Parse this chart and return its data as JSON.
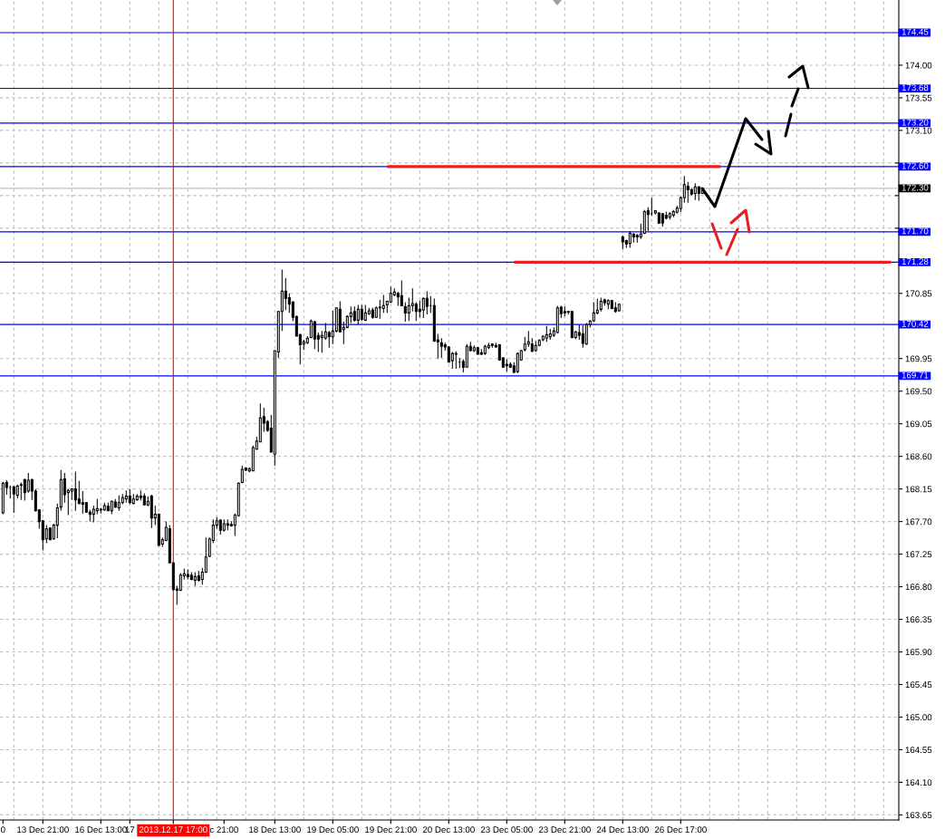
{
  "chart_data": {
    "type": "candlestick",
    "color": "#000000",
    "categories": [
      "0",
      null,
      null,
      null,
      null,
      null,
      null,
      null,
      null,
      null,
      null,
      "13 Dec 21:00",
      null,
      null,
      null,
      null,
      null,
      null,
      null,
      null,
      null,
      null,
      null,
      null,
      null,
      null,
      null,
      "16 Dec 13:00",
      null,
      null,
      null,
      null,
      null,
      null,
      null,
      "17",
      null,
      null,
      null,
      null,
      null,
      null,
      null,
      null,
      null,
      null,
      null,
      "2013.12.17 17:00",
      null,
      null,
      null,
      null,
      null,
      null,
      null,
      null,
      null,
      null,
      null,
      null,
      null,
      "c 21:00",
      null,
      null,
      null,
      null,
      null,
      null,
      null,
      null,
      null,
      null,
      null,
      null,
      null,
      "18 Dec 13:00",
      null,
      null,
      null,
      null,
      null,
      null,
      null,
      null,
      null,
      null,
      null,
      null,
      null,
      null,
      null,
      "19 Dec 05:00",
      null,
      null,
      null,
      null,
      null,
      null,
      null,
      null,
      null,
      null,
      null,
      null,
      null,
      null,
      null,
      "19 Dec 21:00",
      null,
      null,
      null,
      null,
      null,
      null,
      null,
      null,
      null,
      null,
      null,
      null,
      null,
      null,
      null,
      "20 Dec 13:00",
      null,
      null,
      null,
      null,
      null,
      null,
      null,
      null,
      null,
      null,
      null,
      null,
      null,
      null,
      null,
      "23 Dec 05:00",
      null,
      null,
      null,
      null,
      null,
      null,
      null,
      null,
      null,
      null,
      null,
      null,
      null,
      null,
      null,
      "23 Dec 21:00",
      null,
      null,
      null,
      null,
      null,
      null,
      null,
      null,
      null,
      null,
      null,
      null,
      null,
      null,
      null,
      "24 Dec 13:00",
      null,
      null,
      null,
      null,
      null,
      null,
      null,
      null,
      null,
      null,
      null,
      null,
      null,
      null,
      null,
      "26 Dec 17:00",
      null,
      null,
      null,
      null,
      null,
      null,
      null,
      null,
      null,
      null,
      null,
      null,
      null,
      null,
      null,
      null,
      null,
      null,
      null,
      null,
      null,
      null,
      null,
      null,
      null,
      null,
      null,
      null,
      null,
      null,
      null,
      null,
      null,
      null,
      null,
      null,
      null,
      null,
      null,
      null,
      null,
      null,
      null,
      null,
      null,
      null,
      null,
      null,
      null,
      null,
      null,
      null,
      null,
      null,
      null,
      null,
      null,
      null,
      null
    ],
    "ohlc": [
      [
        167.82,
        168.25,
        167.8,
        168.23
      ],
      [
        168.24,
        168.27,
        168.07,
        168.17
      ],
      [
        168.17,
        168.2,
        168.02,
        168.17
      ],
      [
        168.18,
        168.19,
        167.82,
        168.08
      ],
      [
        168.06,
        168.21,
        168.02,
        168.19
      ],
      [
        168.2,
        168.24,
        168.0,
        168.21
      ],
      [
        168.28,
        168.29,
        167.99,
        168.1
      ],
      [
        168.12,
        168.37,
        168.1,
        168.27
      ],
      [
        168.28,
        168.29,
        168.0,
        168.12
      ],
      [
        168.12,
        168.15,
        167.84,
        167.85
      ],
      [
        167.86,
        167.87,
        167.6,
        167.7
      ],
      [
        167.71,
        167.72,
        167.3,
        167.45
      ],
      [
        167.46,
        167.65,
        167.4,
        167.6
      ],
      [
        167.61,
        167.62,
        167.45,
        167.45
      ],
      [
        167.46,
        167.67,
        167.45,
        167.65
      ],
      [
        167.65,
        167.95,
        167.47,
        167.89
      ],
      [
        167.9,
        168.41,
        167.85,
        168.28
      ],
      [
        168.29,
        168.37,
        167.96,
        168.07
      ],
      [
        168.1,
        168.15,
        167.79,
        168.13
      ],
      [
        168.12,
        168.15,
        168.0,
        168.15
      ],
      [
        168.15,
        168.39,
        167.85,
        168.0
      ],
      [
        168.01,
        168.26,
        167.94,
        167.95
      ],
      [
        167.96,
        168.12,
        167.81,
        167.94
      ],
      [
        167.96,
        167.96,
        167.82,
        167.83
      ],
      [
        167.83,
        167.86,
        167.7,
        167.8
      ],
      [
        167.8,
        167.92,
        167.69,
        167.87
      ],
      [
        167.85,
        168.01,
        167.8,
        167.88
      ],
      [
        167.87,
        167.89,
        167.81,
        167.86
      ],
      [
        167.86,
        167.96,
        167.85,
        167.92
      ],
      [
        167.91,
        167.96,
        167.85,
        167.85
      ],
      [
        167.85,
        167.99,
        167.8,
        167.98
      ],
      [
        167.97,
        168.01,
        167.89,
        167.9
      ],
      [
        167.89,
        168.06,
        167.85,
        167.96
      ],
      [
        167.96,
        168.08,
        167.94,
        168.03
      ],
      [
        168.01,
        168.13,
        167.96,
        168.05
      ],
      [
        168.05,
        168.15,
        167.94,
        167.96
      ],
      [
        167.95,
        168.08,
        167.94,
        168.01
      ],
      [
        168.0,
        168.08,
        167.99,
        168.05
      ],
      [
        168.05,
        168.13,
        167.99,
        168.03
      ],
      [
        168.05,
        168.09,
        167.92,
        167.93
      ],
      [
        167.93,
        168.05,
        167.91,
        167.98
      ],
      [
        168.05,
        168.07,
        167.61,
        167.75
      ],
      [
        167.75,
        167.92,
        167.65,
        167.8
      ],
      [
        167.8,
        167.81,
        167.37,
        167.37
      ],
      [
        167.39,
        167.48,
        167.35,
        167.45
      ],
      [
        167.44,
        167.7,
        167.43,
        167.62
      ],
      [
        167.6,
        167.65,
        167.13,
        167.13
      ],
      [
        167.13,
        167.14,
        166.75,
        166.76
      ],
      [
        166.77,
        166.81,
        166.55,
        166.75
      ],
      [
        166.75,
        166.99,
        166.74,
        166.96
      ],
      [
        166.95,
        167.05,
        166.9,
        166.98
      ],
      [
        166.97,
        167.04,
        166.9,
        166.94
      ],
      [
        166.96,
        167.0,
        166.89,
        166.9
      ],
      [
        166.89,
        167.0,
        166.81,
        166.94
      ],
      [
        166.95,
        167.02,
        166.87,
        166.89
      ],
      [
        166.9,
        167.06,
        166.83,
        167.0
      ],
      [
        167.0,
        167.48,
        166.99,
        167.21
      ],
      [
        167.22,
        167.48,
        167.21,
        167.46
      ],
      [
        167.44,
        167.73,
        167.4,
        167.65
      ],
      [
        167.65,
        167.76,
        167.6,
        167.71
      ],
      [
        167.72,
        167.73,
        167.52,
        167.58
      ],
      [
        167.58,
        167.73,
        167.56,
        167.67
      ],
      [
        167.67,
        167.73,
        167.58,
        167.65
      ],
      [
        167.66,
        167.7,
        167.63,
        167.64
      ],
      [
        167.65,
        167.81,
        167.5,
        167.79
      ],
      [
        167.78,
        168.24,
        167.77,
        168.23
      ],
      [
        168.24,
        168.47,
        168.23,
        168.42
      ],
      [
        168.44,
        168.45,
        168.4,
        168.41
      ],
      [
        168.4,
        168.45,
        168.38,
        168.43
      ],
      [
        168.4,
        168.75,
        168.4,
        168.72
      ],
      [
        168.7,
        168.87,
        168.69,
        168.81
      ],
      [
        168.8,
        169.33,
        168.8,
        169.13
      ],
      [
        169.15,
        169.27,
        168.94,
        169.06
      ],
      [
        169.08,
        169.1,
        168.94,
        168.96
      ],
      [
        168.99,
        169.17,
        168.66,
        168.66
      ],
      [
        168.63,
        170.06,
        168.47,
        170.06
      ],
      [
        170.04,
        170.6,
        169.96,
        170.6
      ],
      [
        170.6,
        171.18,
        170.33,
        170.88
      ],
      [
        170.88,
        171.06,
        170.62,
        170.78
      ],
      [
        170.79,
        170.85,
        170.58,
        170.7
      ],
      [
        170.73,
        170.74,
        170.47,
        170.52
      ],
      [
        170.53,
        170.54,
        170.26,
        170.26
      ],
      [
        170.28,
        170.29,
        169.87,
        170.14
      ],
      [
        170.15,
        170.21,
        170.07,
        170.18
      ],
      [
        170.17,
        170.26,
        170.15,
        170.23
      ],
      [
        170.24,
        170.49,
        170.23,
        170.47
      ],
      [
        170.46,
        170.47,
        170.08,
        170.22
      ],
      [
        170.27,
        170.31,
        170.04,
        170.22
      ],
      [
        170.24,
        170.33,
        170.03,
        170.27
      ],
      [
        170.23,
        170.44,
        170.21,
        170.32
      ],
      [
        170.31,
        170.33,
        170.1,
        170.25
      ],
      [
        170.25,
        170.61,
        170.15,
        170.33
      ],
      [
        170.33,
        170.65,
        170.31,
        170.65
      ],
      [
        170.63,
        170.74,
        170.31,
        170.32
      ],
      [
        170.35,
        170.46,
        170.15,
        170.38
      ],
      [
        170.38,
        170.55,
        170.37,
        170.53
      ],
      [
        170.53,
        170.67,
        170.44,
        170.58
      ],
      [
        170.6,
        170.67,
        170.46,
        170.48
      ],
      [
        170.48,
        170.69,
        170.42,
        170.63
      ],
      [
        170.63,
        170.69,
        170.47,
        170.49
      ],
      [
        170.48,
        170.69,
        170.47,
        170.58
      ],
      [
        170.57,
        170.65,
        170.55,
        170.61
      ],
      [
        170.62,
        170.65,
        170.5,
        170.52
      ],
      [
        170.52,
        170.67,
        170.51,
        170.65
      ],
      [
        170.65,
        170.76,
        170.5,
        170.66
      ],
      [
        170.64,
        170.83,
        170.58,
        170.68
      ],
      [
        170.69,
        170.75,
        170.58,
        170.74
      ],
      [
        170.73,
        170.94,
        170.72,
        170.85
      ],
      [
        170.83,
        170.92,
        170.81,
        170.87
      ],
      [
        170.85,
        170.87,
        170.68,
        170.8
      ],
      [
        170.82,
        171.03,
        170.68,
        170.68
      ],
      [
        170.67,
        170.73,
        170.46,
        170.58
      ],
      [
        170.58,
        170.79,
        170.47,
        170.68
      ],
      [
        170.68,
        170.92,
        170.6,
        170.71
      ],
      [
        170.7,
        170.73,
        170.47,
        170.6
      ],
      [
        170.63,
        170.75,
        170.52,
        170.6
      ],
      [
        170.62,
        170.79,
        170.51,
        170.78
      ],
      [
        170.78,
        170.88,
        170.56,
        170.67
      ],
      [
        170.68,
        170.81,
        170.58,
        170.68
      ],
      [
        170.68,
        170.78,
        170.18,
        170.19
      ],
      [
        170.21,
        170.29,
        169.95,
        170.18
      ],
      [
        170.17,
        170.23,
        169.96,
        170.12
      ],
      [
        170.14,
        170.17,
        170.06,
        170.11
      ],
      [
        170.11,
        170.12,
        169.9,
        169.9
      ],
      [
        169.92,
        170.04,
        169.81,
        170.02
      ],
      [
        170.02,
        170.05,
        169.81,
        170.01
      ],
      [
        169.9,
        169.96,
        169.82,
        169.9
      ],
      [
        169.91,
        169.94,
        169.76,
        169.83
      ],
      [
        169.83,
        170.15,
        169.83,
        170.12
      ],
      [
        170.12,
        170.18,
        170.05,
        170.06
      ],
      [
        170.06,
        170.13,
        170.04,
        170.1
      ],
      [
        170.1,
        170.11,
        170.01,
        170.01
      ],
      [
        170.03,
        170.08,
        170.0,
        170.01
      ],
      [
        170.02,
        170.14,
        170.0,
        170.12
      ],
      [
        170.1,
        170.17,
        170.08,
        170.13
      ],
      [
        170.15,
        170.16,
        170.1,
        170.13
      ],
      [
        170.13,
        170.17,
        170.1,
        170.11
      ],
      [
        170.14,
        170.15,
        169.92,
        169.93
      ],
      [
        169.96,
        169.97,
        169.83,
        169.83
      ],
      [
        169.87,
        169.94,
        169.77,
        169.85
      ],
      [
        169.87,
        169.9,
        169.82,
        169.83
      ],
      [
        169.85,
        169.9,
        169.75,
        169.76
      ],
      [
        169.77,
        170.03,
        169.75,
        170.02
      ],
      [
        169.93,
        170.07,
        169.92,
        170.06
      ],
      [
        170.07,
        170.25,
        170.05,
        170.15
      ],
      [
        170.15,
        170.33,
        170.11,
        170.18
      ],
      [
        170.15,
        170.23,
        170.04,
        170.05
      ],
      [
        170.06,
        170.19,
        170.05,
        170.13
      ],
      [
        170.13,
        170.22,
        170.12,
        170.2
      ],
      [
        170.21,
        170.27,
        170.19,
        170.26
      ],
      [
        170.23,
        170.4,
        170.18,
        170.28
      ],
      [
        170.25,
        170.36,
        170.21,
        170.29
      ],
      [
        170.27,
        170.38,
        170.25,
        170.33
      ],
      [
        170.31,
        170.68,
        170.3,
        170.65
      ],
      [
        170.66,
        170.68,
        170.51,
        170.57
      ],
      [
        170.6,
        170.67,
        170.53,
        170.58
      ],
      [
        170.6,
        170.61,
        170.56,
        170.59
      ],
      [
        170.6,
        170.61,
        170.23,
        170.24
      ],
      [
        170.24,
        170.33,
        170.22,
        170.32
      ],
      [
        170.31,
        170.42,
        170.21,
        170.27
      ],
      [
        170.29,
        170.41,
        170.1,
        170.16
      ],
      [
        170.15,
        170.44,
        170.14,
        170.42
      ],
      [
        170.42,
        170.48,
        170.38,
        170.47
      ],
      [
        170.47,
        170.73,
        170.46,
        170.58
      ],
      [
        170.58,
        170.78,
        170.56,
        170.62
      ],
      [
        170.63,
        170.79,
        170.6,
        170.74
      ],
      [
        170.76,
        170.78,
        170.68,
        170.72
      ],
      [
        170.7,
        170.77,
        170.63,
        170.75
      ],
      [
        170.75,
        170.76,
        170.63,
        170.64
      ],
      [
        170.65,
        170.73,
        170.58,
        170.6
      ],
      [
        170.61,
        170.71,
        170.6,
        170.7
      ],
      [
        171.63,
        171.65,
        171.46,
        171.56
      ],
      [
        171.58,
        171.59,
        171.48,
        171.53
      ],
      [
        171.54,
        171.71,
        171.48,
        171.68
      ],
      [
        171.67,
        171.68,
        171.55,
        171.63
      ],
      [
        171.65,
        171.67,
        171.55,
        171.63
      ],
      [
        171.63,
        171.81,
        171.6,
        171.67
      ],
      [
        171.68,
        172.0,
        171.67,
        171.98
      ],
      [
        171.99,
        172.04,
        171.71,
        171.94
      ],
      [
        171.95,
        172.17,
        171.92,
        171.95
      ],
      [
        171.96,
        171.99,
        171.94,
        171.99
      ],
      [
        171.96,
        171.97,
        171.81,
        171.82
      ],
      [
        171.95,
        171.95,
        171.77,
        171.82
      ],
      [
        171.93,
        171.98,
        171.87,
        171.89
      ],
      [
        171.9,
        171.97,
        171.87,
        171.95
      ],
      [
        171.93,
        172.0,
        171.9,
        171.98
      ],
      [
        171.97,
        172.06,
        171.95,
        172.03
      ],
      [
        172.02,
        172.19,
        171.97,
        172.17
      ],
      [
        172.17,
        172.47,
        172.1,
        172.35
      ],
      [
        172.33,
        172.39,
        172.1,
        172.28
      ],
      [
        172.28,
        172.3,
        172.2,
        172.22
      ],
      [
        172.23,
        172.37,
        172.14,
        172.32
      ],
      [
        172.32,
        172.33,
        172.13,
        172.23
      ],
      [
        172.23,
        172.3,
        172.22,
        172.3
      ],
      null,
      null,
      null,
      null,
      null,
      null,
      null,
      null,
      null,
      null,
      null,
      null,
      null,
      null,
      null,
      null,
      null,
      null,
      null,
      null,
      null,
      null,
      null,
      null,
      null,
      null,
      null,
      null,
      null,
      null,
      null,
      null,
      null,
      null,
      null,
      null,
      null,
      null,
      null,
      null,
      null,
      null,
      null,
      null,
      null,
      null,
      null,
      null,
      null,
      null,
      null,
      null,
      null
    ],
    "series": [
      {
        "type": "line",
        "color": "#e62020",
        "values": [
          null,
          null,
          null,
          null,
          null,
          null,
          null,
          null,
          null,
          null,
          null,
          null,
          null,
          null,
          null,
          null,
          null,
          null,
          null,
          null,
          null,
          null,
          null,
          null,
          null,
          null,
          null,
          null,
          null,
          null,
          null,
          null,
          null,
          null,
          null,
          null,
          null,
          null,
          null,
          null,
          null,
          null,
          null,
          null,
          null,
          null,
          null,
          null,
          null,
          null,
          null,
          null,
          null,
          null,
          null,
          null,
          null,
          null,
          null,
          null,
          null,
          null,
          null,
          null,
          null,
          null,
          null,
          null,
          null,
          null,
          null,
          null,
          null,
          null,
          null,
          null,
          null,
          null,
          null,
          null,
          null,
          null,
          null,
          null,
          null,
          null,
          null,
          null,
          null,
          null,
          null,
          null,
          null,
          null,
          null,
          null,
          null,
          null,
          null,
          null,
          null,
          null,
          null,
          null,
          null,
          null,
          172.6,
          172.6,
          172.6,
          172.6,
          172.6,
          172.6,
          172.6,
          172.6,
          172.6,
          172.6,
          172.6,
          172.6,
          172.6,
          172.6,
          172.6,
          172.6,
          172.6,
          172.6,
          172.6,
          172.6,
          172.6,
          172.6,
          172.6,
          172.6,
          172.6,
          172.6,
          172.6,
          172.6,
          172.6,
          172.6,
          172.6,
          172.6,
          172.6,
          172.6,
          172.6,
          172.6,
          172.6,
          172.6,
          172.6,
          172.6,
          172.6,
          172.6,
          172.6,
          172.6,
          172.6,
          172.6,
          172.6,
          172.6,
          172.6,
          172.6,
          172.6,
          172.6,
          172.6,
          172.6,
          172.6,
          172.6,
          172.6,
          172.6,
          172.6,
          172.6,
          172.6,
          172.6,
          172.6,
          172.6,
          172.6,
          172.6,
          172.6,
          172.6,
          172.6,
          172.6,
          172.6,
          172.6,
          172.6,
          172.6,
          172.6,
          172.6,
          172.6,
          172.6,
          172.6,
          172.6,
          172.6,
          172.6,
          172.6,
          172.6,
          172.6,
          172.6,
          172.6,
          172.6,
          172.6,
          172.6,
          172.6,
          172.6,
          172.6,
          null,
          null,
          null,
          null,
          null,
          null,
          null,
          null,
          null,
          null,
          null,
          null,
          null,
          null,
          null,
          null,
          null,
          null,
          null,
          null,
          null,
          null,
          null,
          null,
          null,
          null,
          null,
          null,
          null,
          null,
          null,
          null,
          null,
          null,
          null,
          null,
          null,
          null,
          null,
          null,
          null,
          null,
          null,
          null,
          null,
          null,
          null,
          null
        ]
      },
      {
        "type": "line",
        "color": "#e62020",
        "values": [
          null,
          null,
          null,
          null,
          null,
          null,
          null,
          null,
          null,
          null,
          null,
          null,
          null,
          null,
          null,
          null,
          null,
          null,
          null,
          null,
          null,
          null,
          null,
          null,
          null,
          null,
          null,
          null,
          null,
          null,
          null,
          null,
          null,
          null,
          null,
          null,
          null,
          null,
          null,
          null,
          null,
          null,
          null,
          null,
          null,
          null,
          null,
          null,
          null,
          null,
          null,
          null,
          null,
          null,
          null,
          null,
          null,
          null,
          null,
          null,
          null,
          null,
          null,
          null,
          null,
          null,
          null,
          null,
          null,
          null,
          null,
          null,
          null,
          null,
          null,
          null,
          null,
          null,
          null,
          null,
          null,
          null,
          null,
          null,
          null,
          null,
          null,
          null,
          null,
          null,
          null,
          null,
          null,
          null,
          null,
          null,
          null,
          null,
          null,
          null,
          null,
          null,
          null,
          null,
          null,
          null,
          null,
          null,
          null,
          null,
          null,
          null,
          null,
          null,
          null,
          null,
          null,
          null,
          null,
          null,
          null,
          null,
          null,
          null,
          null,
          null,
          null,
          null,
          null,
          null,
          null,
          null,
          null,
          null,
          null,
          null,
          null,
          null,
          null,
          null,
          null,
          171.28,
          171.28,
          171.28,
          171.28,
          171.28,
          171.28,
          171.28,
          171.28,
          171.28,
          171.28,
          171.28,
          171.28,
          171.28,
          171.28,
          171.28,
          171.28,
          171.28,
          171.28,
          171.28,
          171.28,
          171.28,
          171.28,
          171.28,
          171.28,
          171.28,
          171.28,
          171.28,
          171.28,
          171.28,
          171.28,
          171.28,
          171.28,
          171.28,
          171.28,
          171.28,
          171.28,
          171.28,
          171.28,
          171.28,
          171.28,
          171.28,
          171.28,
          171.28,
          171.28,
          171.28,
          171.28,
          171.28,
          171.28,
          171.28,
          171.28,
          171.28,
          171.28,
          171.28,
          171.28,
          171.28,
          171.28,
          171.28,
          171.28,
          171.28,
          171.28,
          171.28,
          171.28,
          171.28,
          171.28,
          171.28,
          171.28,
          171.28,
          171.28,
          171.28,
          171.28,
          171.28,
          171.28,
          171.28,
          171.28,
          171.28,
          171.28,
          171.28,
          171.28,
          171.28,
          171.28,
          171.28,
          171.28,
          171.28,
          171.28,
          171.28,
          171.28,
          171.28,
          171.28,
          171.28,
          171.28,
          171.28,
          171.28,
          171.28,
          171.28,
          171.28,
          171.28,
          171.28,
          171.28,
          171.28,
          171.28,
          171.28,
          171.28,
          171.28,
          171.28,
          171.28,
          null
        ]
      }
    ],
    "ylim": [
      163.58,
      174.9
    ],
    "yticks": [
      163.65,
      {
        "value": 164.1,
        "label": "164.10"
      },
      164.55,
      {
        "value": 165,
        "label": "165.00"
      },
      165.45,
      {
        "value": 165.9,
        "label": "165.90"
      },
      166.35,
      {
        "value": 166.8,
        "label": "166.80"
      },
      167.25,
      {
        "value": 167.7,
        "label": "167.70"
      },
      168.15,
      {
        "value": 168.6,
        "label": "168.60"
      },
      169.05,
      {
        "value": 169.5,
        "label": "169.50"
      },
      169.95,
      170.85,
      {
        "value": 171.75,
        "label": null
      },
      {
        "value": 172.2,
        "label": null
      },
      {
        "value": 172.65,
        "label": null
      },
      {
        "value": 173.1,
        "label": "173.10"
      },
      173.55,
      {
        "value": 174,
        "label": "174.00"
      }
    ],
    "ref_lines": [
      {
        "axis": "y",
        "value": 174.45,
        "label": "174.45",
        "color": "#0000ff"
      },
      {
        "axis": "y",
        "value": 173.68,
        "label": "173.68",
        "color": "#0000ff"
      },
      {
        "axis": "y",
        "value": 173.2,
        "label": "173.20",
        "color": "#0000ff"
      },
      {
        "axis": "y",
        "value": 172.6,
        "label": "172.60",
        "color": "#0000ff"
      },
      {
        "axis": "y",
        "value": 172.3,
        "label": "172.30",
        "color": "#c0c0c0"
      },
      {
        "axis": "y",
        "value": 171.7,
        "label": "171.70",
        "color": "#0000ff"
      },
      {
        "axis": "y",
        "value": 171.28,
        "label": "171.28",
        "color": "#0000ff"
      },
      {
        "axis": "y",
        "value": 170.42,
        "label": "170.42",
        "color": "#0000ff"
      },
      {
        "axis": "y",
        "value": 169.71,
        "label": "169.71",
        "color": "#0000ff"
      },
      {
        "axis": "x",
        "value": "2013.12.17 17:00",
        "color": "#ff0000"
      }
    ],
    "grid": true
  }
}
